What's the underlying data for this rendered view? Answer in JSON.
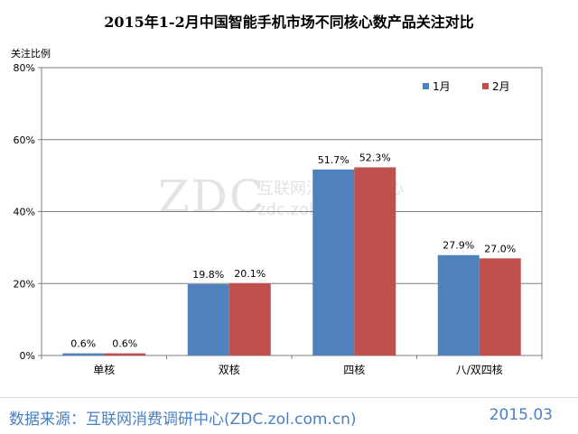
{
  "chart_data": {
    "type": "bar",
    "title": "2015年1-2月中国智能手机市场不同核心数产品关注对比",
    "ylabel": "关注比例",
    "xlabel": "",
    "categories": [
      "单核",
      "双核",
      "四核",
      "八/双四核"
    ],
    "series": [
      {
        "name": "1月",
        "color": "#4f81bd",
        "values": [
          0.6,
          19.8,
          51.7,
          27.9
        ]
      },
      {
        "name": "2月",
        "color": "#c0504d",
        "values": [
          0.6,
          20.1,
          52.3,
          27.0
        ]
      }
    ],
    "data_labels": [
      [
        "0.6%",
        "19.8%",
        "51.7%",
        "27.9%"
      ],
      [
        "0.6%",
        "20.1%",
        "52.3%",
        "27.0%"
      ]
    ],
    "ylim": [
      0,
      80
    ],
    "yticks": [
      0,
      20,
      40,
      60,
      80
    ],
    "ytick_labels": [
      "0%",
      "20%",
      "40%",
      "60%",
      "80%"
    ],
    "grid": true,
    "legend_position": "top-right"
  },
  "watermark": {
    "logo": "ZDC",
    "name": "互联网消费调研中心",
    "url": "zdc.zol.com.cn"
  },
  "footer": {
    "source": "数据来源：互联网消费调研中心(ZDC.zol.com.cn)",
    "date": "2015.03"
  }
}
